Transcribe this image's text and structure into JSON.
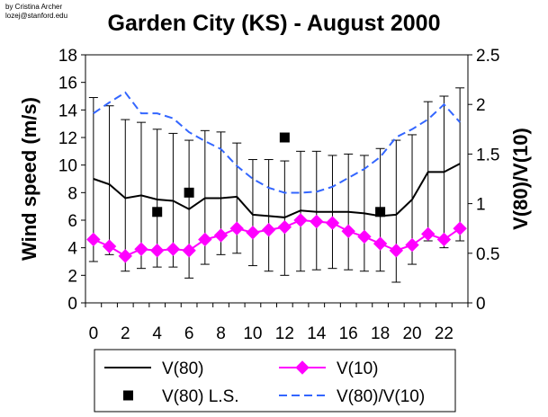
{
  "credit": {
    "line1": "by Cristina Archer",
    "line2": "lozej@stanford.edu"
  },
  "chart_data": {
    "type": "line",
    "title": "Garden City (KS) - August 2000",
    "xlabel": "",
    "ylabel": "Wind speed (m/s)",
    "y2label": "V(80)/V(10)",
    "x": [
      0,
      1,
      2,
      3,
      4,
      5,
      6,
      7,
      8,
      9,
      10,
      11,
      12,
      13,
      14,
      15,
      16,
      17,
      18,
      19,
      20,
      21,
      22,
      23
    ],
    "xticks": [
      "0",
      "2",
      "4",
      "6",
      "8",
      "10",
      "12",
      "14",
      "16",
      "18",
      "20",
      "22"
    ],
    "ylim": [
      0,
      18
    ],
    "yticks": [
      "0",
      "2",
      "4",
      "6",
      "8",
      "10",
      "12",
      "14",
      "16",
      "18"
    ],
    "y2lim": [
      0,
      2.5
    ],
    "y2ticks": [
      "0",
      "0.5",
      "1",
      "1.5",
      "2",
      "2.5"
    ],
    "grid": false,
    "legend_position": "bottom",
    "series": [
      {
        "name": "V(80)",
        "axis": "left",
        "style": "solid",
        "color": "#000000",
        "values": [
          9.0,
          8.6,
          7.6,
          7.8,
          7.5,
          7.4,
          6.8,
          7.6,
          7.6,
          7.7,
          6.4,
          6.3,
          6.2,
          6.7,
          6.6,
          6.6,
          6.6,
          6.5,
          6.3,
          6.4,
          7.5,
          9.5,
          9.5,
          10.1
        ],
        "error_lower": [
          3.0,
          3.5,
          2.3,
          2.5,
          2.6,
          2.6,
          1.8,
          2.8,
          3.5,
          3.6,
          2.7,
          2.3,
          2.0,
          2.3,
          2.4,
          2.5,
          2.4,
          2.3,
          2.3,
          1.5,
          2.8,
          4.5,
          4.0,
          4.5
        ],
        "error_upper": [
          14.9,
          14.3,
          13.3,
          13.1,
          12.6,
          12.3,
          11.8,
          12.5,
          12.4,
          11.6,
          10.4,
          10.4,
          10.3,
          11.0,
          11.0,
          10.7,
          10.8,
          10.7,
          11.2,
          11.8,
          12.2,
          14.6,
          15.0,
          15.6
        ]
      },
      {
        "name": "V(10)",
        "axis": "left",
        "style": "solid-diamond",
        "color": "#ff00ff",
        "values": [
          4.6,
          4.1,
          3.4,
          3.9,
          3.8,
          3.9,
          3.8,
          4.6,
          4.9,
          5.4,
          5.1,
          5.3,
          5.5,
          6.0,
          5.9,
          5.8,
          5.2,
          4.8,
          4.3,
          3.8,
          4.2,
          5.0,
          4.6,
          5.4
        ]
      },
      {
        "name": "V(80) L.S.",
        "axis": "left",
        "style": "square-marker",
        "color": "#000000",
        "x": [
          4,
          6,
          12,
          18
        ],
        "values": [
          6.6,
          8.0,
          12.0,
          6.6
        ]
      },
      {
        "name": "V(80)/V(10)",
        "axis": "right",
        "style": "dashed",
        "color": "#3366ff",
        "values": [
          1.91,
          2.02,
          2.12,
          1.91,
          1.91,
          1.86,
          1.72,
          1.63,
          1.55,
          1.38,
          1.25,
          1.16,
          1.11,
          1.11,
          1.12,
          1.17,
          1.26,
          1.35,
          1.47,
          1.67,
          1.75,
          1.85,
          2.0,
          1.82
        ]
      }
    ]
  }
}
